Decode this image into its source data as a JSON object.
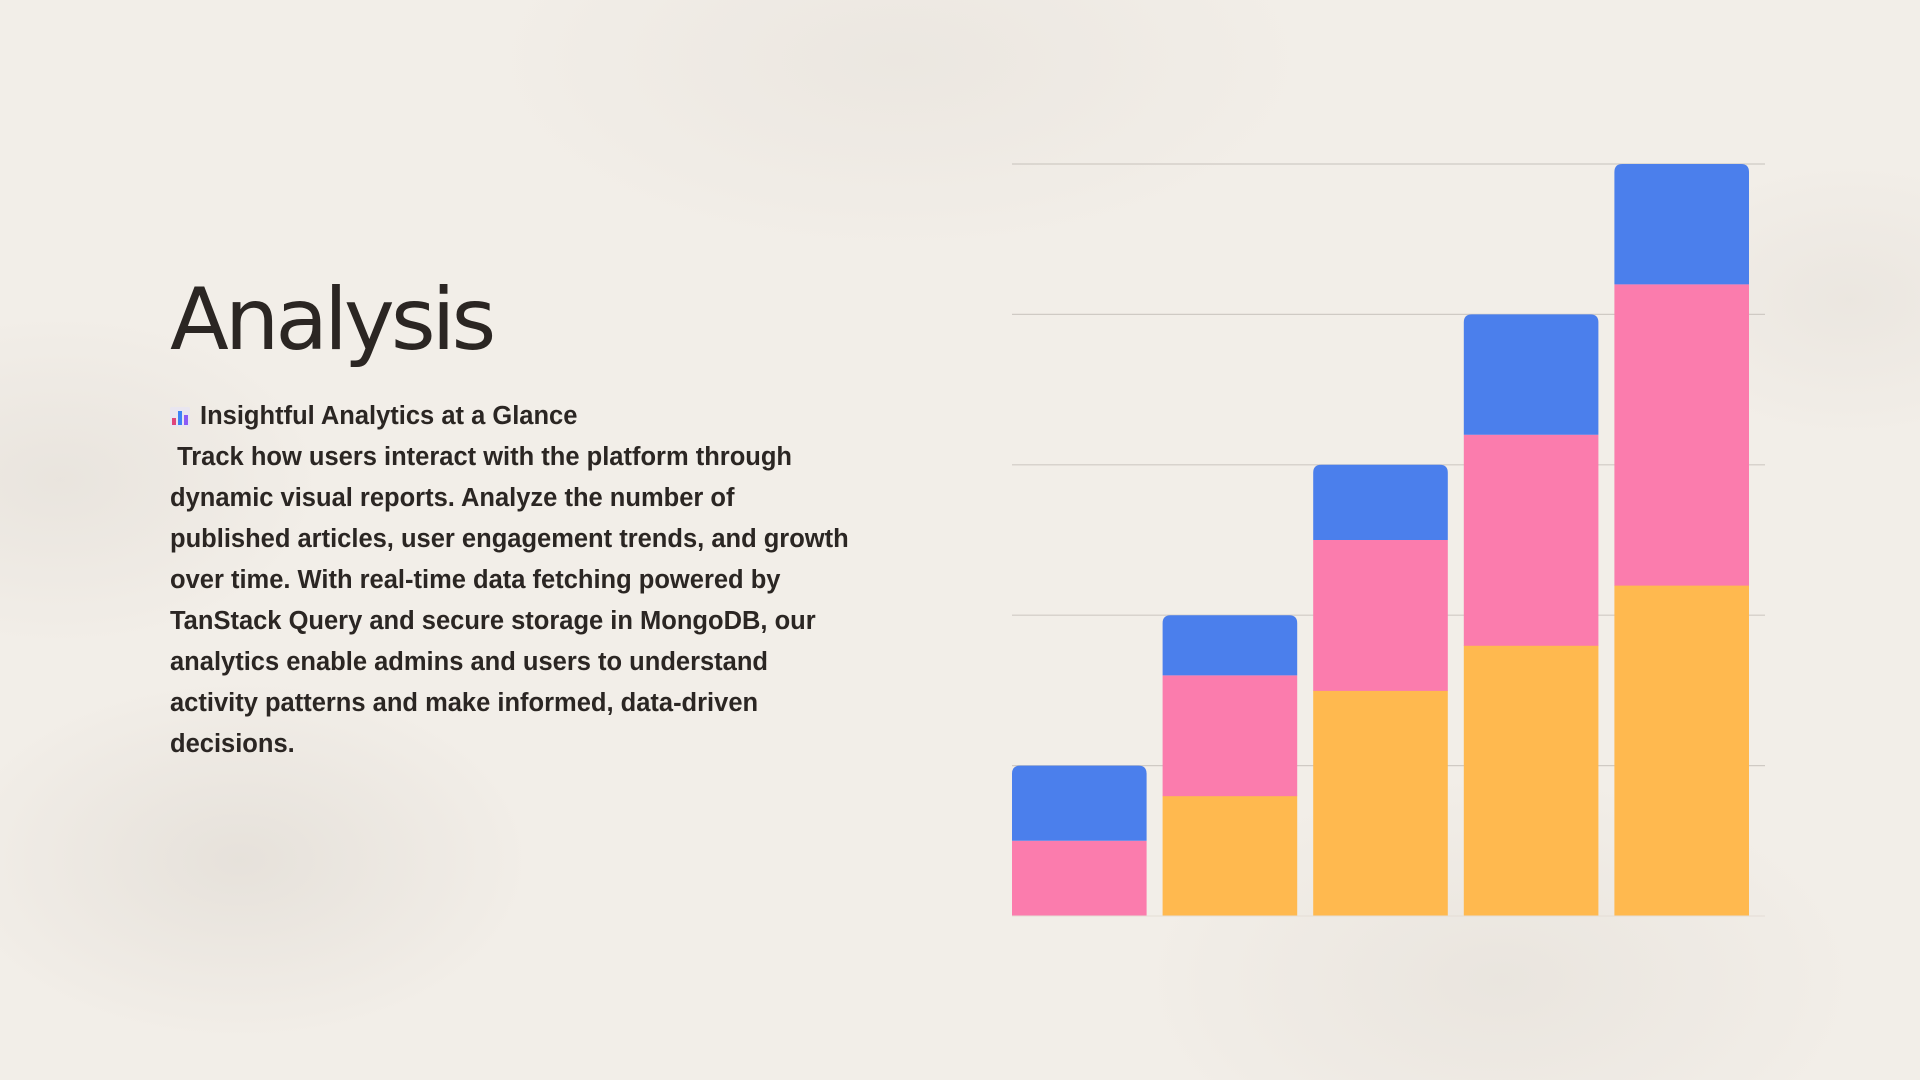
{
  "slide": {
    "title": "Analysis",
    "subtitle": "Insightful Analytics at a Glance",
    "subtitle_icon": "bar-chart-icon",
    "body": " Track how users interact with the platform through dynamic visual reports. Analyze the number of published articles, user engagement trends, and growth over time. With real-time data fetching powered by TanStack Query and secure storage in MongoDB, our analytics enable admins and users to understand activity patterns and make informed, data-driven decisions."
  },
  "chart_data": {
    "type": "bar",
    "stacked": true,
    "categories": [
      "",
      "",
      "",
      "",
      ""
    ],
    "series": [
      {
        "color": "#ffb94f",
        "values": [
          0,
          0.8,
          1.5,
          1.8,
          2.2
        ]
      },
      {
        "color": "#fb7cad",
        "values": [
          0.5,
          0.8,
          1.0,
          1.4,
          2.0
        ]
      },
      {
        "color": "#4b7fec",
        "values": [
          0.5,
          0.4,
          0.5,
          0.8,
          0.8
        ]
      }
    ],
    "ylim": [
      0,
      5
    ],
    "gridlines": [
      1,
      2,
      3,
      4,
      5
    ],
    "grid": true,
    "legend": "none"
  }
}
